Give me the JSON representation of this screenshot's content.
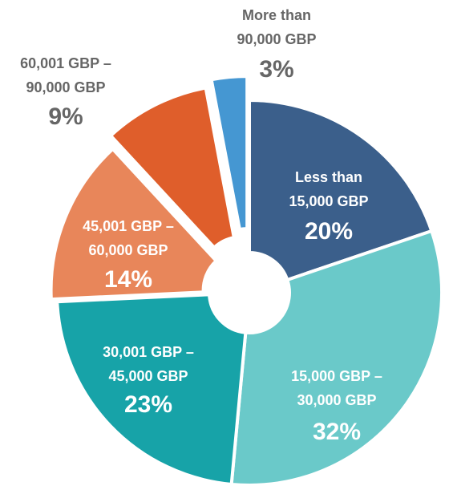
{
  "chart_data": {
    "type": "donut",
    "categories": [
      [
        "Less than",
        "15,000 GBP"
      ],
      [
        "15,000 GBP –",
        "30,000 GBP"
      ],
      [
        "30,001 GBP –",
        "45,000 GBP"
      ],
      [
        "45,001 GBP –",
        "60,000 GBP"
      ],
      [
        "60,001 GBP –",
        "90,000 GBP"
      ],
      [
        "More than",
        "90,000 GBP"
      ]
    ],
    "values": [
      20,
      32,
      23,
      14,
      9,
      3
    ],
    "value_labels": [
      "20%",
      "32%",
      "23%",
      "14%",
      "9%",
      "3%"
    ],
    "colors": [
      "#3b5f8b",
      "#6ac9c9",
      "#17a3a8",
      "#e8865a",
      "#df5e2b",
      "#4597d2"
    ]
  }
}
